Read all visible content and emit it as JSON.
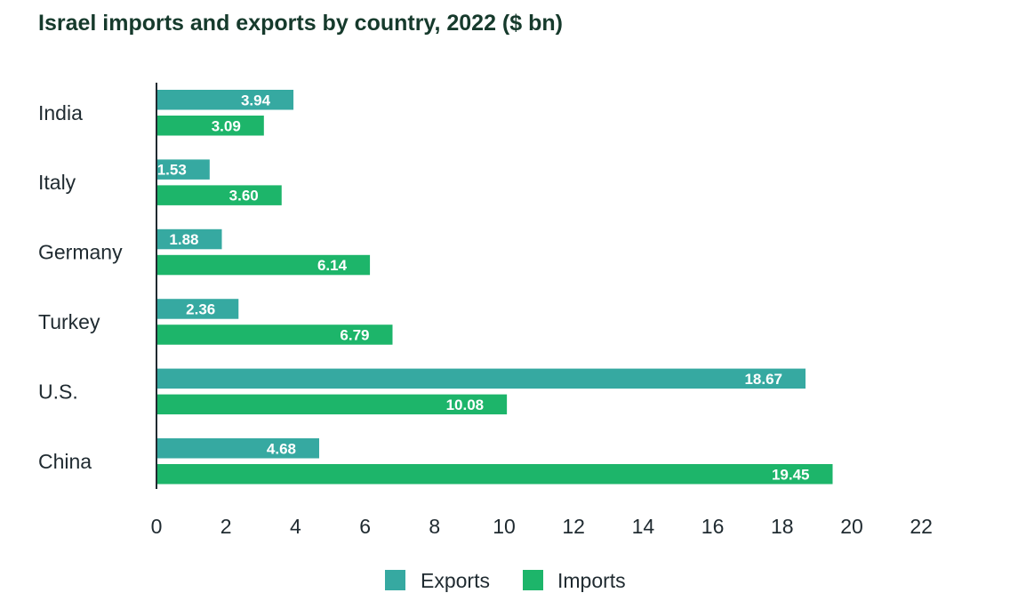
{
  "chart_data": {
    "type": "bar",
    "orientation": "horizontal",
    "title": "Israel imports and exports by country, 2022 ($ bn)",
    "categories": [
      "India",
      "Italy",
      "Germany",
      "Turkey",
      "U.S.",
      "China"
    ],
    "series": [
      {
        "name": "Exports",
        "color": "#36a9a1",
        "values": [
          3.94,
          1.53,
          1.88,
          2.36,
          18.67,
          4.68
        ],
        "labels": [
          "3.94",
          "1.53",
          "1.88",
          "2.36",
          "18.67",
          "4.68"
        ]
      },
      {
        "name": "Imports",
        "color": "#1db56a",
        "values": [
          3.09,
          3.6,
          6.14,
          6.79,
          10.08,
          19.45
        ],
        "labels": [
          "3.09",
          "3.60",
          "6.14",
          "6.79",
          "10.08",
          "19.45"
        ]
      }
    ],
    "xlim": [
      0,
      22
    ],
    "xticks": [
      "0",
      "2",
      "4",
      "6",
      "8",
      "10",
      "12",
      "14",
      "16",
      "18",
      "20",
      "22"
    ],
    "xlabel": "",
    "ylabel": "",
    "grid": false,
    "legend": "bottom-center"
  }
}
